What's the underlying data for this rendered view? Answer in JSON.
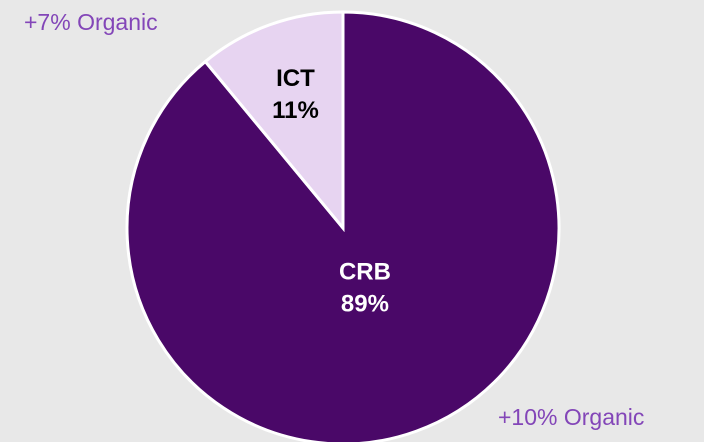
{
  "chart_data": {
    "type": "pie",
    "categories": [
      "CRB",
      "ICT"
    ],
    "values": [
      89,
      11
    ],
    "value_labels": [
      "89%",
      "11%"
    ],
    "colors": [
      "#4a0868",
      "#e7d4f1"
    ],
    "annotations": [
      "+7% Organic",
      "+10% Organic"
    ]
  }
}
